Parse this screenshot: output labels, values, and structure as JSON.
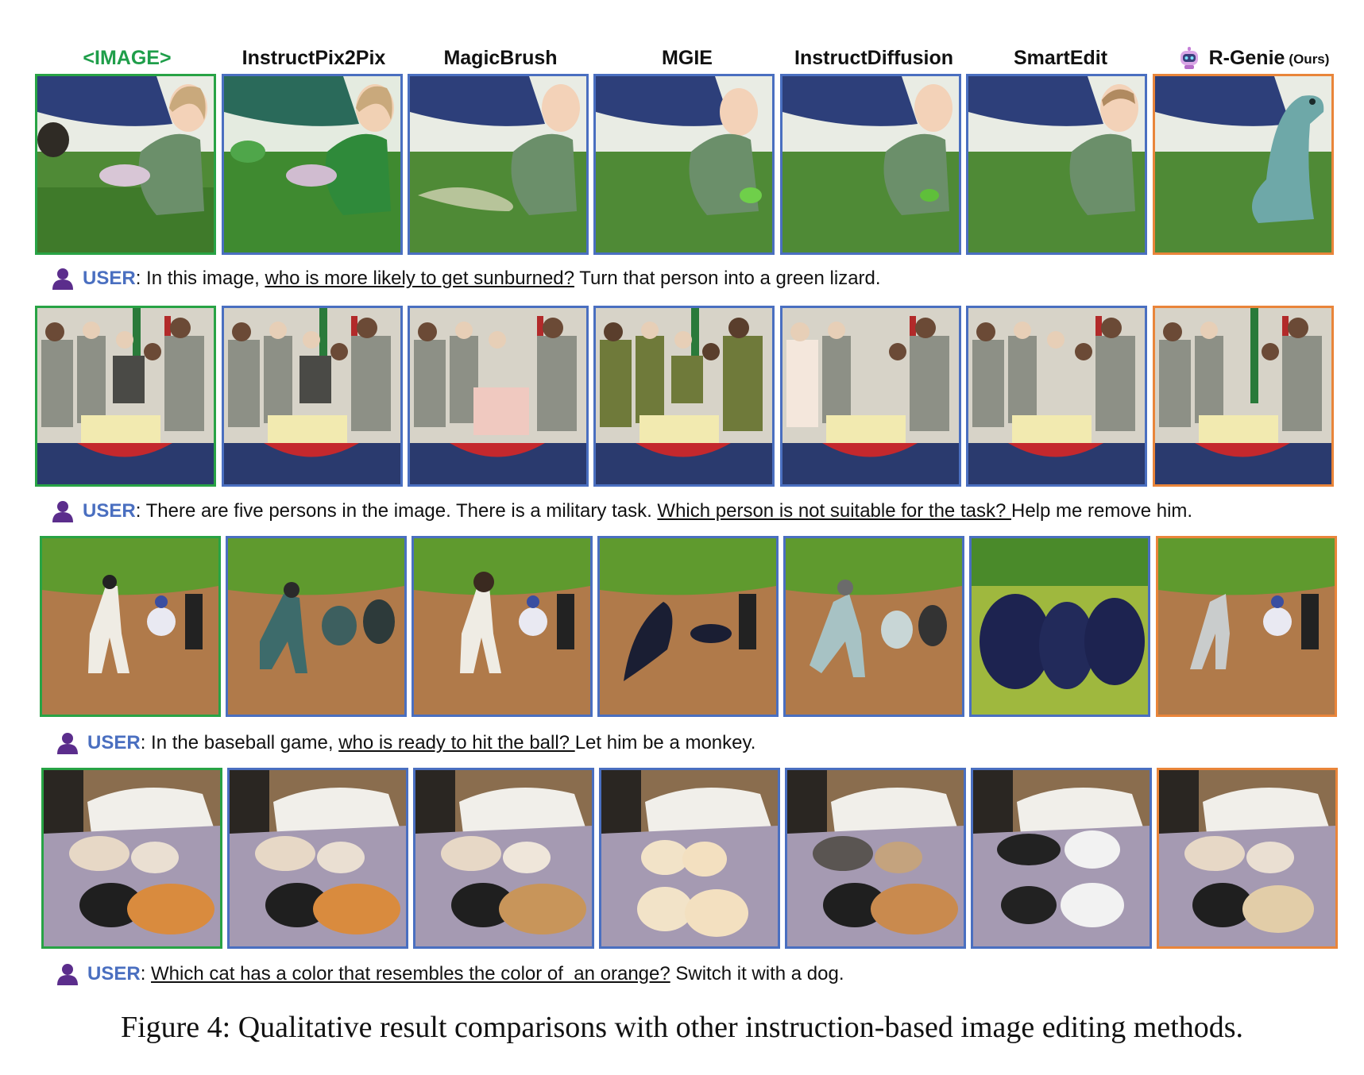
{
  "columns": [
    "<IMAGE>",
    "InstructPix2Pix",
    "MagicBrush",
    "MGIE",
    "InstructDiffusion",
    "SmartEdit",
    "R-Genie"
  ],
  "ours_suffix": "(Ours)",
  "user_tag": "USER",
  "prompts": [
    {
      "pre": ": In this image, ",
      "underlined": "who is more likely to get sunburned?",
      "post": " Turn that person into a green lizard."
    },
    {
      "pre": ": There are five persons in the image. There is a military task. ",
      "underlined": "Which person is not suitable for the task? ",
      "post": "Help me remove him."
    },
    {
      "pre": ": In the baseball game, ",
      "underlined": "who is ready to hit the ball? ",
      "post": "Let him be a monkey."
    },
    {
      "pre": ": ",
      "underlined": "Which cat has a color that resembles the color of  an orange?",
      "post": " Switch it with a dog."
    }
  ],
  "caption": "Figure 4: Qualitative result comparisons with other instruction-based image editing methods.",
  "colors": {
    "input_border": "#28a345",
    "method_border": "#4a6fc0",
    "ours_border": "#e9853a",
    "user_tag": "#4a6fc0"
  }
}
